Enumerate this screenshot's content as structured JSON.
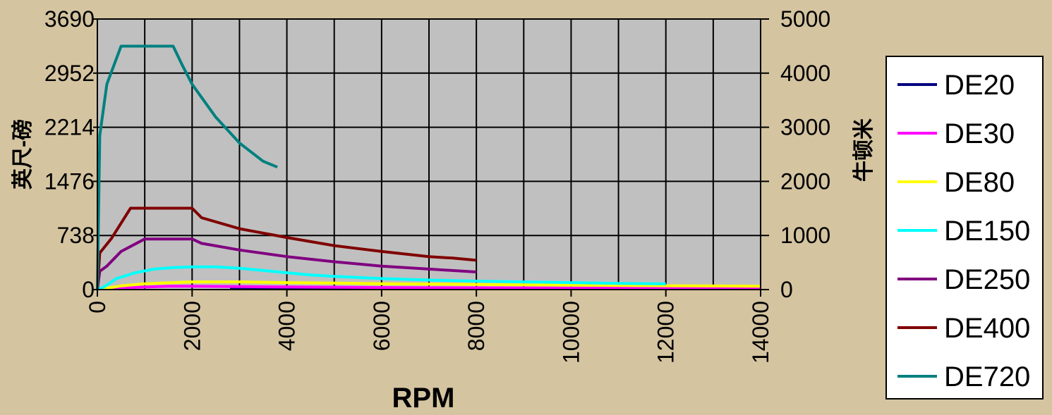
{
  "chart_data": {
    "type": "line",
    "xlabel": "RPM",
    "ylabel_left": "英尺-磅",
    "ylabel_right": "牛顿米",
    "xlim": [
      0,
      14000
    ],
    "ylim_left": [
      0,
      3690
    ],
    "ylim_right": [
      0,
      5000
    ],
    "x_ticks": [
      "0",
      "2000",
      "4000",
      "6000",
      "8000",
      "10000",
      "12000",
      "14000"
    ],
    "y_ticks_left": [
      "0",
      "738",
      "1476",
      "2214",
      "2952",
      "3690"
    ],
    "y_ticks_right": [
      "0",
      "1000",
      "2000",
      "3000",
      "4000",
      "5000"
    ],
    "grid": true,
    "plot_background": "#c0c0c0",
    "legend_position": "right",
    "series": [
      {
        "name": "DE20",
        "color": "#000080",
        "points": [
          [
            2800,
            25
          ],
          [
            4000,
            25
          ],
          [
            6000,
            25
          ],
          [
            8000,
            18
          ],
          [
            10000,
            14
          ],
          [
            12000,
            12
          ],
          [
            14000,
            10
          ]
        ]
      },
      {
        "name": "DE30",
        "color": "#ff00ff",
        "points": [
          [
            300,
            10
          ],
          [
            800,
            30
          ],
          [
            1500,
            45
          ],
          [
            2000,
            45
          ],
          [
            3000,
            40
          ],
          [
            4000,
            36
          ],
          [
            6000,
            28
          ],
          [
            8000,
            24
          ],
          [
            9700,
            20
          ],
          [
            12000,
            17
          ],
          [
            14000,
            15
          ]
        ]
      },
      {
        "name": "DE80",
        "color": "#ffff00",
        "points": [
          [
            100,
            10
          ],
          [
            500,
            50
          ],
          [
            1000,
            80
          ],
          [
            2000,
            105
          ],
          [
            3000,
            105
          ],
          [
            4000,
            95
          ],
          [
            5000,
            88
          ],
          [
            6000,
            80
          ],
          [
            7000,
            75
          ],
          [
            8000,
            70
          ],
          [
            9000,
            65
          ],
          [
            10000,
            60
          ],
          [
            12000,
            52
          ],
          [
            14000,
            46
          ]
        ]
      },
      {
        "name": "DE150",
        "color": "#00ffff",
        "points": [
          [
            0,
            0
          ],
          [
            150,
            40
          ],
          [
            400,
            150
          ],
          [
            800,
            230
          ],
          [
            1200,
            280
          ],
          [
            1600,
            300
          ],
          [
            2000,
            310
          ],
          [
            2500,
            310
          ],
          [
            3000,
            290
          ],
          [
            3500,
            260
          ],
          [
            4000,
            230
          ],
          [
            4500,
            200
          ],
          [
            5000,
            180
          ],
          [
            6000,
            150
          ],
          [
            7000,
            130
          ],
          [
            8000,
            115
          ],
          [
            9000,
            105
          ],
          [
            10000,
            95
          ],
          [
            11000,
            85
          ],
          [
            12000,
            78
          ]
        ]
      },
      {
        "name": "DE250",
        "color": "#800080",
        "points": [
          [
            0,
            0
          ],
          [
            50,
            250
          ],
          [
            200,
            320
          ],
          [
            500,
            520
          ],
          [
            1000,
            690
          ],
          [
            2000,
            690
          ],
          [
            2200,
            630
          ],
          [
            3000,
            540
          ],
          [
            4000,
            450
          ],
          [
            5000,
            380
          ],
          [
            6000,
            320
          ],
          [
            7000,
            280
          ],
          [
            8000,
            240
          ]
        ]
      },
      {
        "name": "DE400",
        "color": "#800000",
        "points": [
          [
            0,
            0
          ],
          [
            50,
            500
          ],
          [
            300,
            700
          ],
          [
            700,
            1110
          ],
          [
            2000,
            1110
          ],
          [
            2200,
            980
          ],
          [
            3000,
            830
          ],
          [
            4000,
            710
          ],
          [
            5000,
            600
          ],
          [
            6000,
            520
          ],
          [
            7000,
            450
          ],
          [
            7500,
            430
          ],
          [
            8000,
            400
          ]
        ]
      },
      {
        "name": "DE720",
        "color": "#008080",
        "points": [
          [
            0,
            0
          ],
          [
            50,
            2100
          ],
          [
            200,
            2800
          ],
          [
            500,
            3320
          ],
          [
            1600,
            3320
          ],
          [
            1800,
            3050
          ],
          [
            2000,
            2800
          ],
          [
            2500,
            2350
          ],
          [
            3000,
            2000
          ],
          [
            3500,
            1750
          ],
          [
            3800,
            1670
          ]
        ]
      }
    ]
  }
}
